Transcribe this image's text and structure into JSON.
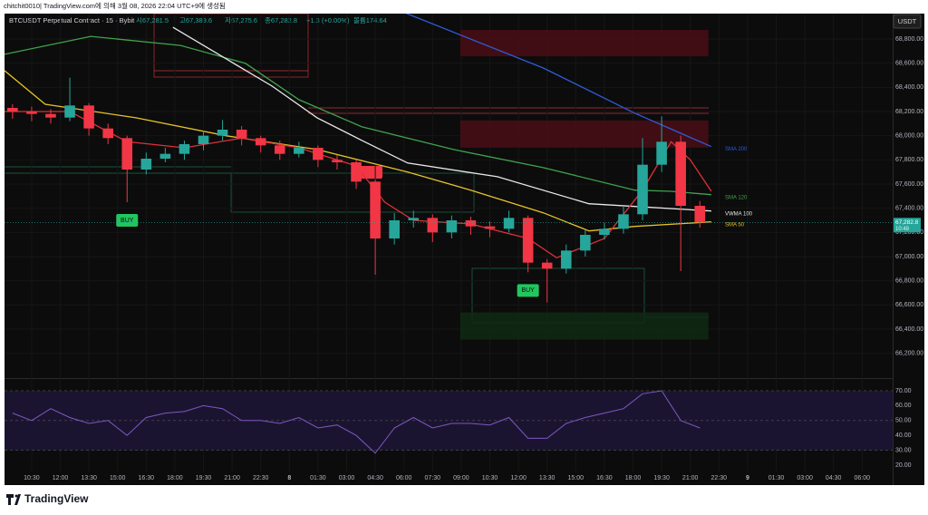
{
  "header": {
    "credit": "chitchit0010| TradingView.com에 의해 3월 08, 2026 22:04 UTC+9에 생성됨",
    "symbol": "BTCUSDT Perpetual Contract · 15 · Bybit",
    "legend_values": [
      "시67,281.5",
      "고67,389.6",
      "저67,275.6",
      "종67,282.8",
      "+1.3 (+0.00%)",
      "볼륨174.64"
    ],
    "currency": "USDT"
  },
  "footer": {
    "brand": "TradingView"
  },
  "chart_data": [
    {
      "type": "candlestick",
      "x": [
        -1,
        0,
        1,
        2,
        3,
        4,
        5,
        6,
        7,
        8,
        9,
        10,
        11,
        12,
        13,
        14,
        15,
        16,
        17,
        18,
        19,
        20,
        21,
        22,
        23,
        24,
        25,
        26,
        27,
        28,
        29,
        30,
        31,
        32,
        33,
        34,
        35
      ],
      "open": [
        68230,
        68200,
        68180,
        68150,
        68250,
        68060,
        67980,
        67720,
        67810,
        67850,
        67930,
        68000,
        68050,
        67980,
        67920,
        67850,
        67900,
        67800,
        67780,
        67620,
        67150,
        67300,
        67320,
        67200,
        67300,
        67250,
        67230,
        67320,
        66950,
        66900,
        67050,
        67180,
        67230,
        67350,
        67760,
        67950,
        67420
      ],
      "high": [
        68260,
        68240,
        68220,
        68480,
        68270,
        68100,
        68000,
        67860,
        67900,
        67960,
        68040,
        68130,
        68080,
        68000,
        67960,
        67950,
        67920,
        67840,
        67800,
        67640,
        67360,
        67380,
        67350,
        67340,
        67330,
        67290,
        67380,
        67340,
        66980,
        67100,
        67220,
        67280,
        67420,
        67980,
        68160,
        68000,
        67460
      ],
      "low": [
        68140,
        68120,
        68100,
        68120,
        68000,
        67930,
        67450,
        67680,
        67780,
        67800,
        67880,
        67960,
        67920,
        67860,
        67800,
        67820,
        67740,
        67720,
        67560,
        66850,
        67100,
        67240,
        67120,
        67150,
        67180,
        67160,
        67200,
        66870,
        66620,
        66860,
        67000,
        67140,
        67190,
        67300,
        67700,
        66880,
        67240
      ],
      "close": [
        68200,
        68180,
        68150,
        68250,
        68060,
        67980,
        67720,
        67810,
        67850,
        67930,
        68000,
        68050,
        67980,
        67920,
        67850,
        67900,
        67800,
        67780,
        67620,
        67150,
        67300,
        67320,
        67200,
        67300,
        67250,
        67230,
        67320,
        66950,
        66900,
        67050,
        67180,
        67230,
        67350,
        67760,
        67950,
        67420,
        67283
      ],
      "up_color": "#26a69a",
      "down_color": "#f23645",
      "overlays": [
        {
          "name": "SMA 200",
          "color": "#2f5bd8",
          "x": [
            19.5,
            26.8,
            31.6,
            35.6
          ],
          "values": [
            69020,
            68560,
            68186,
            67910
          ]
        },
        {
          "name": "SMA 120",
          "color": "#3fa34d",
          "x": [
            -1.42,
            3.1,
            7.8,
            11.2,
            14,
            17.3,
            22.1,
            26.8,
            31.6,
            33.5,
            35.6
          ],
          "values": [
            68673,
            68822,
            68747,
            68598,
            68298,
            68073,
            67886,
            67736,
            67550,
            67540,
            67512
          ]
        },
        {
          "name": "VWMA 100",
          "color": "#e8e8e8",
          "x": [
            7.4,
            12.6,
            14.95,
            17.3,
            19.7,
            24.4,
            29.19,
            31.6,
            35.6
          ],
          "values": [
            68897,
            68410,
            68148,
            67961,
            67774,
            67661,
            67437,
            67415,
            67377
          ]
        },
        {
          "name": "SMA 50",
          "color": "#e6c229",
          "x": [
            -1.42,
            0.71,
            5.46,
            10.2,
            14.95,
            19.7,
            23,
            26.8,
            29.2,
            31.6,
            35.6
          ],
          "values": [
            68538,
            68260,
            68148,
            67999,
            67886,
            67699,
            67550,
            67362,
            67212,
            67250,
            67287
          ]
        },
        {
          "color": "#e0303a",
          "x": [
            -1.42,
            2,
            5,
            8,
            11,
            14,
            17,
            18.5,
            20,
            23,
            26,
            27.5,
            30,
            32,
            33.5,
            34.5,
            35.6
          ],
          "values": [
            68200,
            68200,
            67950,
            67900,
            67980,
            67900,
            67750,
            67450,
            67300,
            67270,
            67150,
            66990,
            67150,
            67550,
            67950,
            67800,
            67540
          ]
        }
      ],
      "zones": [
        {
          "x": [
            22.45,
            35.45
          ],
          "y": [
            68657,
            68875
          ],
          "color": "#4a0e16"
        },
        {
          "x": [
            22.45,
            35.45
          ],
          "y": [
            67901,
            68126
          ],
          "color": "#4a0e16"
        },
        {
          "x": [
            22.45,
            35.45
          ],
          "y": [
            66313,
            66538
          ],
          "color": "#0f2a14"
        }
      ],
      "signals": [
        {
          "text": "BUY",
          "x": 5
        },
        {
          "text": "BUY",
          "x": 26
        }
      ],
      "last_price": {
        "value": 67282.8,
        "label": "67,282.8",
        "time": "10:48"
      },
      "xlim": [
        -1.42,
        45.1
      ],
      "xticks": [
        {
          "value": 0,
          "label": "10:30"
        },
        {
          "value": 1.5,
          "label": "12:00"
        },
        {
          "value": 3,
          "label": "13:30"
        },
        {
          "value": 4.5,
          "label": "15:00"
        },
        {
          "value": 6,
          "label": "16:30"
        },
        {
          "value": 7.5,
          "label": "18:00"
        },
        {
          "value": 9,
          "label": "19:30"
        },
        {
          "value": 10.5,
          "label": "21:00"
        },
        {
          "value": 12,
          "label": "22:30"
        },
        {
          "value": 13.5,
          "label": "8"
        },
        {
          "value": 15,
          "label": "01:30"
        },
        {
          "value": 16.5,
          "label": "03:00"
        },
        {
          "value": 18,
          "label": "04:30"
        },
        {
          "value": 19.5,
          "label": "06:00"
        },
        {
          "value": 21,
          "label": "07:30"
        },
        {
          "value": 22.5,
          "label": "09:00"
        },
        {
          "value": 24,
          "label": "10:30"
        },
        {
          "value": 25.5,
          "label": "12:00"
        },
        {
          "value": 27,
          "label": "13:30"
        },
        {
          "value": 28.5,
          "label": "15:00"
        },
        {
          "value": 30,
          "label": "16:30"
        },
        {
          "value": 31.5,
          "label": "18:00"
        },
        {
          "value": 33,
          "label": "19:30"
        },
        {
          "value": 34.5,
          "label": "21:00"
        },
        {
          "value": 36,
          "label": "22:30"
        },
        {
          "value": 37.5,
          "label": "9"
        },
        {
          "value": 39,
          "label": "01:30"
        },
        {
          "value": 40.5,
          "label": "03:00"
        },
        {
          "value": 42,
          "label": "04:30"
        },
        {
          "value": 43.5,
          "label": "06:00"
        }
      ],
      "ylim": [
        66010,
        69010
      ],
      "yticks": [
        {
          "value": 66200,
          "label": "66,200.00"
        },
        {
          "value": 66400,
          "label": "66,400.00"
        },
        {
          "value": 66600,
          "label": "66,600.00"
        },
        {
          "value": 66800,
          "label": "66,800.00"
        },
        {
          "value": 67000,
          "label": "67,000.00"
        },
        {
          "value": 67200,
          "label": "67,200.00"
        },
        {
          "value": 67400,
          "label": "67,400.00"
        },
        {
          "value": 67600,
          "label": "67,600.00"
        },
        {
          "value": 67800,
          "label": "67,800.00"
        },
        {
          "value": 68000,
          "label": "68,000.00"
        },
        {
          "value": 68200,
          "label": "68,200.00"
        },
        {
          "value": 68400,
          "label": "68,400.00"
        },
        {
          "value": 68600,
          "label": "68,600.00"
        },
        {
          "value": 68800,
          "label": "68,800.00"
        }
      ]
    },
    {
      "type": "line",
      "color": "#7e57c2",
      "x": [
        -1,
        0,
        1,
        2,
        3,
        4,
        5,
        6,
        7,
        8,
        9,
        10,
        11,
        12,
        13,
        14,
        15,
        16,
        17,
        18,
        19,
        20,
        21,
        22,
        23,
        24,
        25,
        26,
        27,
        28,
        29,
        30,
        31,
        32,
        33,
        34,
        35
      ],
      "values": [
        55,
        50,
        58,
        52,
        48,
        50,
        40,
        52,
        55,
        56,
        60,
        58,
        50,
        50,
        48,
        52,
        45,
        47,
        40,
        28,
        45,
        52,
        45,
        48,
        48,
        47,
        52,
        38,
        38,
        48,
        52,
        55,
        58,
        68,
        70,
        50,
        45
      ],
      "xlim": [
        -1.42,
        45.1
      ],
      "ylim": [
        15.7,
        76.7
      ],
      "yticks": [
        {
          "value": 70,
          "label": "70.00"
        },
        {
          "value": 60,
          "label": "60.00"
        },
        {
          "value": 50,
          "label": "50.00"
        },
        {
          "value": 40,
          "label": "40.00"
        },
        {
          "value": 30,
          "label": "30.00"
        },
        {
          "value": 20,
          "label": "20.00"
        }
      ],
      "band": [
        30,
        70
      ],
      "guides": [
        70,
        50,
        30
      ]
    }
  ]
}
